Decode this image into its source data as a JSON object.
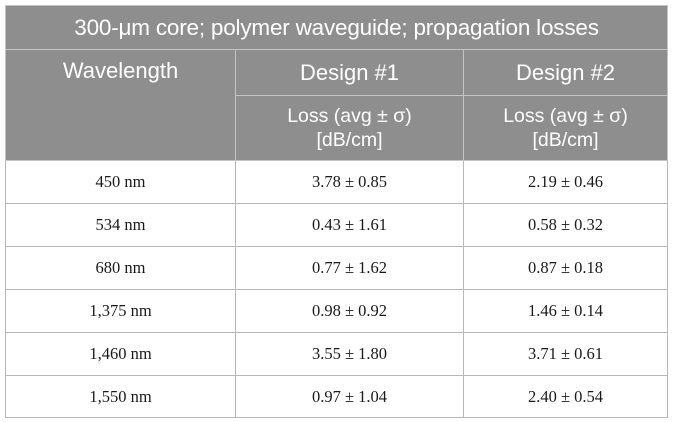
{
  "table": {
    "title": "300-μm core; polymer waveguide; propagation losses",
    "headers": {
      "wavelength": "Wavelength",
      "design1": "Design #1",
      "design2": "Design #2",
      "loss_line1": "Loss (avg ± σ)",
      "loss_line2": "[dB/cm]"
    },
    "rows": [
      {
        "wavelength": "450 nm",
        "design1": "3.78 ± 0.85",
        "design2": "2.19 ± 0.46"
      },
      {
        "wavelength": "534 nm",
        "design1": "0.43 ± 1.61",
        "design2": "0.58 ± 0.32"
      },
      {
        "wavelength": "680 nm",
        "design1": "0.77 ± 1.62",
        "design2": "0.87 ± 0.18"
      },
      {
        "wavelength": "1,375 nm",
        "design1": "0.98 ± 0.92",
        "design2": "1.46 ± 0.14"
      },
      {
        "wavelength": "1,460 nm",
        "design1": "3.55 ± 1.80",
        "design2": "3.71 ± 0.61"
      },
      {
        "wavelength": "1,550 nm",
        "design1": "0.97 ± 1.04",
        "design2": "2.40 ± 0.54"
      }
    ]
  },
  "colors": {
    "header_bg": "#8e8e8e",
    "header_text": "#ffffff",
    "body_text": "#1a1a1a",
    "grid": "#b8b8b8"
  }
}
